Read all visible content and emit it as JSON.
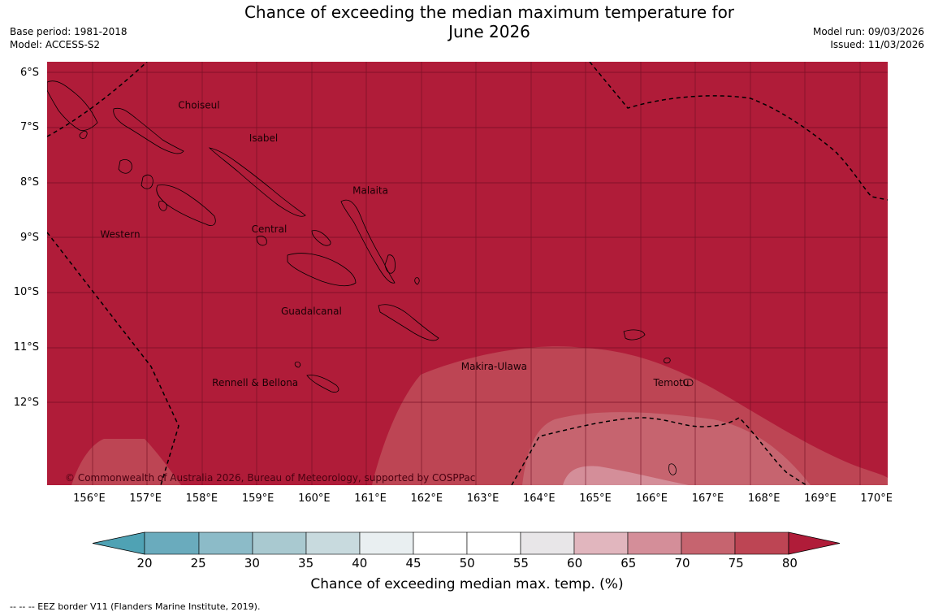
{
  "header": {
    "title_line1": "Chance of exceeding the median maximum temperature for",
    "title_line2": "June 2026",
    "base_period": "Base period: 1981-2018",
    "model": "Model: ACCESS-S2",
    "model_run": "Model run: 09/03/2026",
    "issued": "Issued: 11/03/2026"
  },
  "map": {
    "copyright": "© Commonwealth of Australia 2026, Bureau of Meteorology, supported by COSPPac",
    "extent": {
      "lon_min": 155.25,
      "lon_max": 170.2,
      "lat_min": -13.5,
      "lat_max": -5.8
    },
    "lat_ticks": [
      {
        "value": -6,
        "label": "6°S"
      },
      {
        "value": -7,
        "label": "7°S"
      },
      {
        "value": -8,
        "label": "8°S"
      },
      {
        "value": -9,
        "label": "9°S"
      },
      {
        "value": -10,
        "label": "10°S"
      },
      {
        "value": -11,
        "label": "11°S"
      },
      {
        "value": -12,
        "label": "12°S"
      }
    ],
    "lon_ticks": [
      {
        "value": 156,
        "label": "156°E"
      },
      {
        "value": 157,
        "label": "157°E"
      },
      {
        "value": 158,
        "label": "158°E"
      },
      {
        "value": 159,
        "label": "159°E"
      },
      {
        "value": 160,
        "label": "160°E"
      },
      {
        "value": 161,
        "label": "161°E"
      },
      {
        "value": 162,
        "label": "162°E"
      },
      {
        "value": 163,
        "label": "163°E"
      },
      {
        "value": 164,
        "label": "164°E"
      },
      {
        "value": 165,
        "label": "165°E"
      },
      {
        "value": 166,
        "label": "166°E"
      },
      {
        "value": 167,
        "label": "167°E"
      },
      {
        "value": 168,
        "label": "168°E"
      },
      {
        "value": 169,
        "label": "169°E"
      },
      {
        "value": 170,
        "label": "170°E"
      }
    ],
    "province_labels": [
      {
        "name": "Choiseul",
        "lon": 157.95,
        "lat": -6.65
      },
      {
        "name": "Isabel",
        "lon": 159.1,
        "lat": -7.25
      },
      {
        "name": "Malaita",
        "lon": 161.0,
        "lat": -8.2
      },
      {
        "name": "Western",
        "lon": 156.55,
        "lat": -9.0
      },
      {
        "name": "Central",
        "lon": 159.2,
        "lat": -8.9
      },
      {
        "name": "Guadalcanal",
        "lon": 159.95,
        "lat": -10.4
      },
      {
        "name": "Makira-Ulawa",
        "lon": 163.2,
        "lat": -11.4
      },
      {
        "name": "Rennell & Bellona",
        "lon": 158.95,
        "lat": -11.7
      },
      {
        "name": "Temotu",
        "lon": 166.35,
        "lat": -11.7
      }
    ]
  },
  "colorbar": {
    "ticks": [
      "20",
      "25",
      "30",
      "35",
      "40",
      "45",
      "50",
      "55",
      "60",
      "65",
      "70",
      "75",
      "80"
    ],
    "colors": [
      "#4fa2b4",
      "#6aabbd",
      "#8cbbc8",
      "#a9c9d0",
      "#c8dade",
      "#e9eff1",
      "#ffffff",
      "#ffffff",
      "#e8e6e8",
      "#e1b6be",
      "#d48e99",
      "#c6646f",
      "#bd4554",
      "#b01c39"
    ],
    "title": "Chance of exceeding median max. temp. (%)"
  },
  "footnote": "--  --  -- EEZ border V11 (Flanders Marine Institute, 2019)."
}
